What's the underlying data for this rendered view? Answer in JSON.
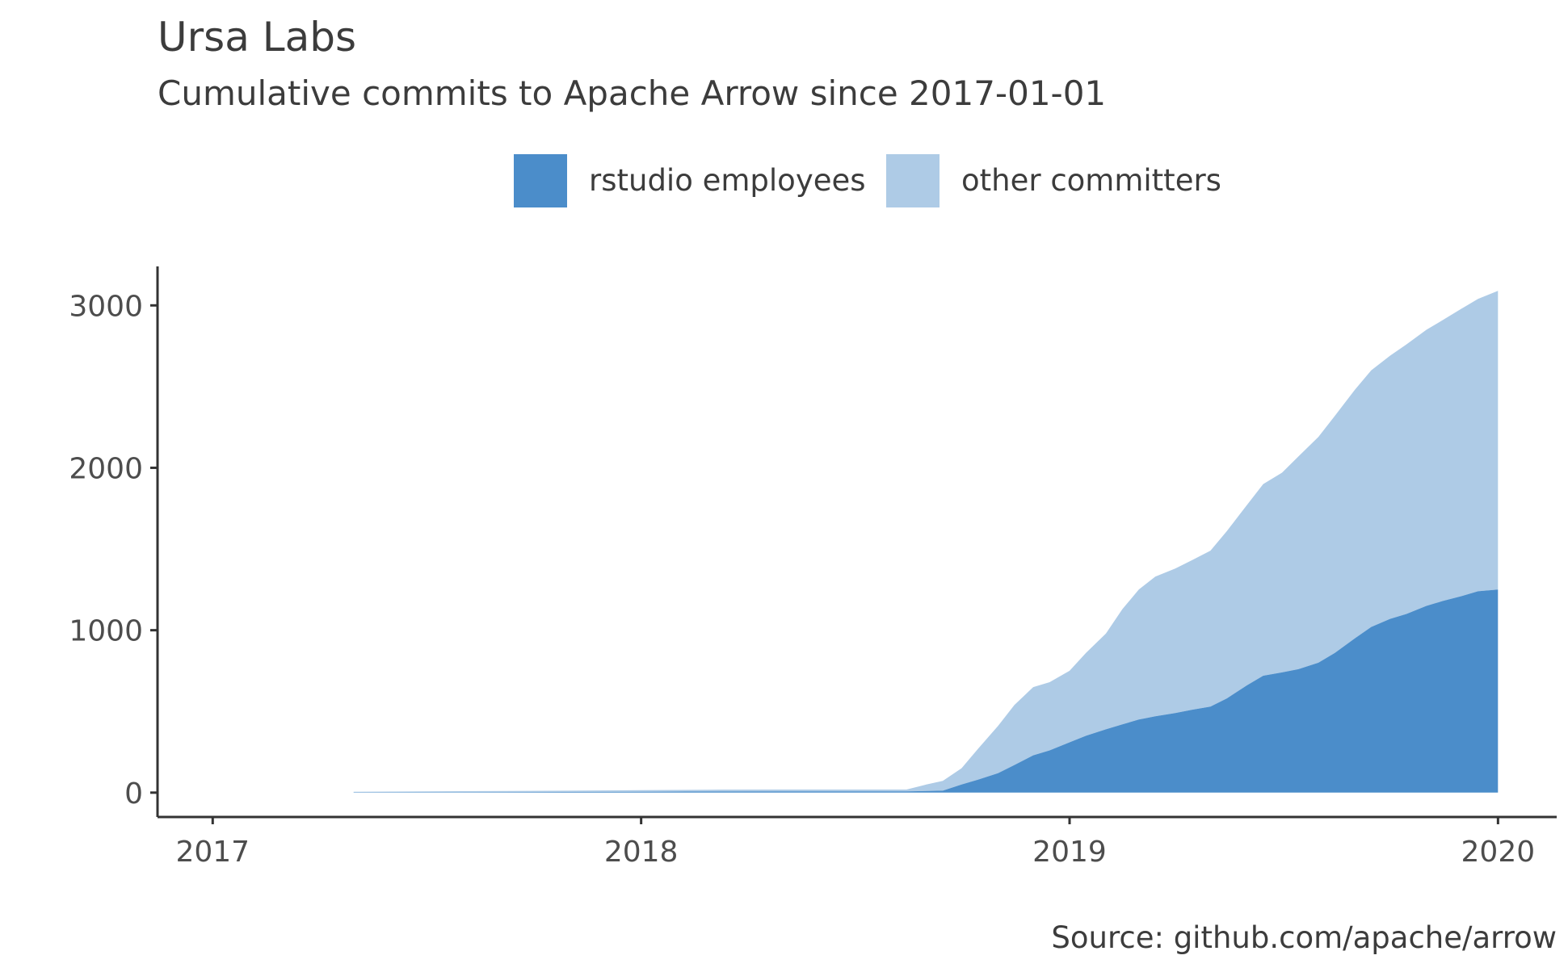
{
  "chart_data": {
    "type": "area",
    "stacked": true,
    "title": "Ursa Labs",
    "subtitle": "Cumulative commits to Apache Arrow since 2017-01-01",
    "caption": "Source: github.com/apache/arrow",
    "xlabel": "",
    "ylabel": "",
    "xlim": [
      "2016-11-15",
      "2020-02-20"
    ],
    "ylim": [
      -150,
      3240
    ],
    "x_ticks": [
      {
        "value": "2017-01-01",
        "label": "2017"
      },
      {
        "value": "2018-01-01",
        "label": "2018"
      },
      {
        "value": "2019-01-01",
        "label": "2019"
      },
      {
        "value": "2020-01-01",
        "label": "2020"
      }
    ],
    "y_ticks": [
      {
        "value": 0,
        "label": "0"
      },
      {
        "value": 1000,
        "label": "1000"
      },
      {
        "value": 2000,
        "label": "2000"
      },
      {
        "value": 3000,
        "label": "3000"
      }
    ],
    "grid": false,
    "legend": "top",
    "colors": {
      "rstudio": "#4b8dca",
      "other": "#aecbe6",
      "text": "#3c3c3c",
      "axis": "#333333"
    },
    "x": [
      "2017-05-01",
      "2017-08-01",
      "2017-11-01",
      "2018-01-01",
      "2018-03-01",
      "2018-05-01",
      "2018-07-01",
      "2018-08-15",
      "2018-09-01",
      "2018-09-15",
      "2018-10-01",
      "2018-10-15",
      "2018-11-01",
      "2018-11-15",
      "2018-12-01",
      "2018-12-15",
      "2019-01-01",
      "2019-01-15",
      "2019-02-01",
      "2019-02-15",
      "2019-03-01",
      "2019-03-15",
      "2019-04-01",
      "2019-04-15",
      "2019-05-01",
      "2019-05-15",
      "2019-06-01",
      "2019-06-15",
      "2019-07-01",
      "2019-07-15",
      "2019-08-01",
      "2019-08-15",
      "2019-09-01",
      "2019-09-15",
      "2019-10-01",
      "2019-10-15",
      "2019-11-01",
      "2019-11-15",
      "2019-12-01",
      "2019-12-15",
      "2020-01-01"
    ],
    "series": [
      {
        "name": "rstudio employees",
        "values": [
          2,
          3,
          4,
          5,
          7,
          8,
          8,
          8,
          10,
          12,
          50,
          80,
          120,
          170,
          230,
          260,
          310,
          350,
          390,
          420,
          450,
          470,
          490,
          510,
          530,
          580,
          660,
          720,
          740,
          760,
          800,
          860,
          950,
          1020,
          1070,
          1100,
          1150,
          1180,
          1210,
          1240,
          1250
        ]
      },
      {
        "name": "other committers",
        "values": [
          3,
          6,
          8,
          10,
          11,
          11,
          11,
          11,
          40,
          60,
          100,
          190,
          290,
          370,
          420,
          420,
          440,
          510,
          590,
          710,
          800,
          860,
          890,
          920,
          960,
          1030,
          1110,
          1180,
          1230,
          1310,
          1390,
          1460,
          1530,
          1580,
          1620,
          1660,
          1700,
          1730,
          1770,
          1800,
          1840
        ]
      }
    ]
  }
}
